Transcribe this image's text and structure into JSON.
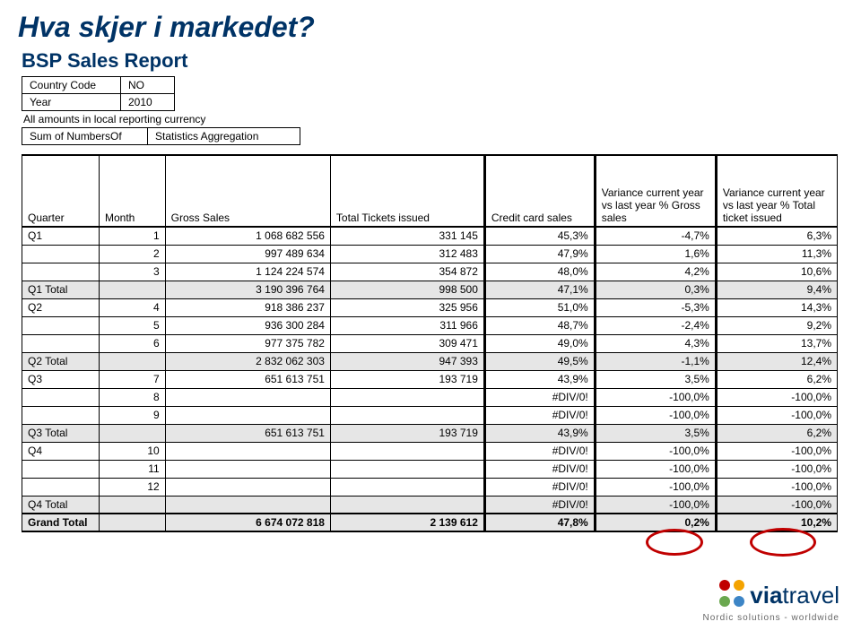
{
  "title": "Hva skjer i markedet?",
  "subtitle": "BSP Sales Report",
  "meta": {
    "country_label": "Country Code",
    "country_value": "NO",
    "year_label": "Year",
    "year_value": "2010",
    "note": "All amounts in local reporting currency",
    "sum_label": "Sum of NumbersOf",
    "stats_label": "Statistics Aggregation"
  },
  "columns": {
    "quarter": "Quarter",
    "month": "Month",
    "gross": "Gross Sales",
    "tickets": "Total Tickets issued",
    "credit": "Credit card sales",
    "var1": "Variance current year vs last year % Gross sales",
    "var2": "Variance current year vs last year % Total ticket issued"
  },
  "rows": [
    {
      "q": "Q1",
      "m": "1",
      "gross": "1 068 682 556",
      "tickets": "331 145",
      "credit": "45,3%",
      "v1": "-4,7%",
      "v2": "6,3%",
      "type": "data"
    },
    {
      "q": "",
      "m": "2",
      "gross": "997 489 634",
      "tickets": "312 483",
      "credit": "47,9%",
      "v1": "1,6%",
      "v2": "11,3%",
      "type": "data"
    },
    {
      "q": "",
      "m": "3",
      "gross": "1 124 224 574",
      "tickets": "354 872",
      "credit": "48,0%",
      "v1": "4,2%",
      "v2": "10,6%",
      "type": "data"
    },
    {
      "q": "Q1 Total",
      "m": "",
      "gross": "3 190 396 764",
      "tickets": "998 500",
      "credit": "47,1%",
      "v1": "0,3%",
      "v2": "9,4%",
      "type": "subtotal"
    },
    {
      "q": "Q2",
      "m": "4",
      "gross": "918 386 237",
      "tickets": "325 956",
      "credit": "51,0%",
      "v1": "-5,3%",
      "v2": "14,3%",
      "type": "data"
    },
    {
      "q": "",
      "m": "5",
      "gross": "936 300 284",
      "tickets": "311 966",
      "credit": "48,7%",
      "v1": "-2,4%",
      "v2": "9,2%",
      "type": "data"
    },
    {
      "q": "",
      "m": "6",
      "gross": "977 375 782",
      "tickets": "309 471",
      "credit": "49,0%",
      "v1": "4,3%",
      "v2": "13,7%",
      "type": "data"
    },
    {
      "q": "Q2 Total",
      "m": "",
      "gross": "2 832 062 303",
      "tickets": "947 393",
      "credit": "49,5%",
      "v1": "-1,1%",
      "v2": "12,4%",
      "type": "subtotal"
    },
    {
      "q": "Q3",
      "m": "7",
      "gross": "651 613 751",
      "tickets": "193 719",
      "credit": "43,9%",
      "v1": "3,5%",
      "v2": "6,2%",
      "type": "data"
    },
    {
      "q": "",
      "m": "8",
      "gross": "",
      "tickets": "",
      "credit": "#DIV/0!",
      "v1": "-100,0%",
      "v2": "-100,0%",
      "type": "data"
    },
    {
      "q": "",
      "m": "9",
      "gross": "",
      "tickets": "",
      "credit": "#DIV/0!",
      "v1": "-100,0%",
      "v2": "-100,0%",
      "type": "data"
    },
    {
      "q": "Q3 Total",
      "m": "",
      "gross": "651 613 751",
      "tickets": "193 719",
      "credit": "43,9%",
      "v1": "3,5%",
      "v2": "6,2%",
      "type": "subtotal"
    },
    {
      "q": "Q4",
      "m": "10",
      "gross": "",
      "tickets": "",
      "credit": "#DIV/0!",
      "v1": "-100,0%",
      "v2": "-100,0%",
      "type": "data"
    },
    {
      "q": "",
      "m": "11",
      "gross": "",
      "tickets": "",
      "credit": "#DIV/0!",
      "v1": "-100,0%",
      "v2": "-100,0%",
      "type": "data"
    },
    {
      "q": "",
      "m": "12",
      "gross": "",
      "tickets": "",
      "credit": "#DIV/0!",
      "v1": "-100,0%",
      "v2": "-100,0%",
      "type": "data"
    },
    {
      "q": "Q4 Total",
      "m": "",
      "gross": "",
      "tickets": "",
      "credit": "#DIV/0!",
      "v1": "-100,0%",
      "v2": "-100,0%",
      "type": "subtotal"
    },
    {
      "q": "Grand Total",
      "m": "",
      "gross": "6 674 072 818",
      "tickets": "2 139 612",
      "credit": "47,8%",
      "v1": "0,2%",
      "v2": "10,2%",
      "type": "grand"
    }
  ],
  "logo": {
    "text1": "via",
    "text2": "travel",
    "tagline": "Nordic solutions - worldwide",
    "dot_colors": [
      "#c00000",
      "#f4a300",
      "#6aa84f",
      "#3d85c6"
    ]
  },
  "colors": {
    "title": "#003366",
    "subtotal_bg": "#e6e6e6",
    "circle": "#c00000"
  }
}
